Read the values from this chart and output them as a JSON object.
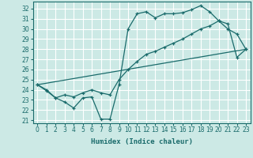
{
  "title": "",
  "xlabel": "Humidex (Indice chaleur)",
  "xlim": [
    -0.5,
    23.5
  ],
  "ylim": [
    20.7,
    32.7
  ],
  "yticks": [
    21,
    22,
    23,
    24,
    25,
    26,
    27,
    28,
    29,
    30,
    31,
    32
  ],
  "xticks": [
    0,
    1,
    2,
    3,
    4,
    5,
    6,
    7,
    8,
    9,
    10,
    11,
    12,
    13,
    14,
    15,
    16,
    17,
    18,
    19,
    20,
    21,
    22,
    23
  ],
  "background_color": "#cce9e5",
  "grid_color": "#ffffff",
  "line_color": "#1a6b6b",
  "line1_x": [
    0,
    1,
    2,
    3,
    4,
    5,
    6,
    7,
    8,
    9,
    10,
    11,
    12,
    13,
    14,
    15,
    16,
    17,
    18,
    19,
    20,
    21,
    22,
    23
  ],
  "line1_y": [
    24.5,
    24.0,
    23.2,
    22.8,
    22.2,
    23.2,
    23.3,
    21.1,
    21.1,
    24.5,
    30.0,
    31.5,
    31.7,
    31.1,
    31.5,
    31.5,
    31.6,
    31.9,
    32.3,
    31.7,
    30.8,
    30.0,
    29.5,
    28.0
  ],
  "line2_x": [
    0,
    1,
    2,
    3,
    4,
    5,
    6,
    7,
    8,
    9,
    10,
    11,
    12,
    13,
    14,
    15,
    16,
    17,
    18,
    19,
    20,
    21,
    22,
    23
  ],
  "line2_y": [
    24.5,
    23.9,
    23.2,
    23.5,
    23.3,
    23.7,
    24.0,
    23.7,
    23.5,
    25.0,
    26.0,
    26.8,
    27.5,
    27.8,
    28.2,
    28.6,
    29.0,
    29.5,
    30.0,
    30.3,
    30.8,
    30.5,
    27.2,
    28.0
  ],
  "line3_x": [
    0,
    23
  ],
  "line3_y": [
    24.5,
    28.0
  ]
}
